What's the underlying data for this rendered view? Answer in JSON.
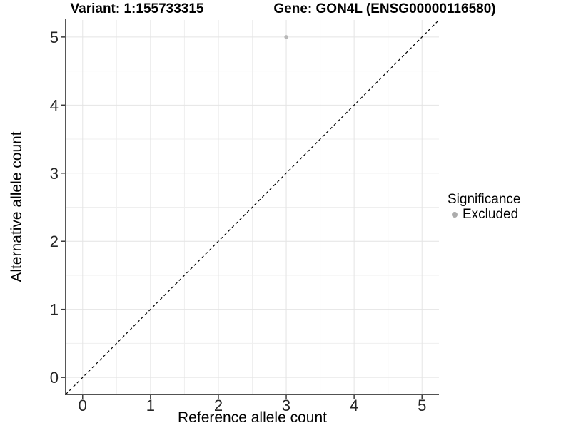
{
  "titles": {
    "variant": "Variant: 1:155733315",
    "gene": "Gene: GON4L (ENSG00000116580)"
  },
  "legend": {
    "title": "Significance",
    "items": [
      {
        "label": "Excluded",
        "color": "#acacac",
        "marker": "circle"
      }
    ],
    "position": "right"
  },
  "chart_data": {
    "type": "scatter",
    "title_left": "Variant: 1:155733315",
    "title_right": "Gene: GON4L (ENSG00000116580)",
    "xlabel": "Reference allele count",
    "ylabel": "Alternative allele count",
    "xlim": [
      -0.25,
      5.25
    ],
    "ylim": [
      -0.25,
      5.25
    ],
    "xticks": [
      0,
      1,
      2,
      3,
      4,
      5
    ],
    "yticks": [
      0,
      1,
      2,
      3,
      4,
      5
    ],
    "xticks_minor": [
      0.5,
      1.5,
      2.5,
      3.5,
      4.5
    ],
    "yticks_minor": [
      0.5,
      1.5,
      2.5,
      3.5,
      4.5
    ],
    "grid": "major+minor",
    "legend_position": "right",
    "series": [
      {
        "name": "Excluded",
        "color": "#b8b8b8",
        "points": [
          {
            "x": 3,
            "y": 5
          }
        ]
      }
    ],
    "reference_line": {
      "type": "identity y=x",
      "style": "dashed",
      "color": "#000000",
      "from": [
        -0.25,
        -0.25
      ],
      "to": [
        5.25,
        5.25
      ]
    }
  },
  "style": {
    "background": "#ffffff",
    "grid_major_color": "#e4e4e4",
    "grid_minor_color": "#efefef",
    "axis_color": "#3a3a3a",
    "tick_label_color": "#262626"
  }
}
